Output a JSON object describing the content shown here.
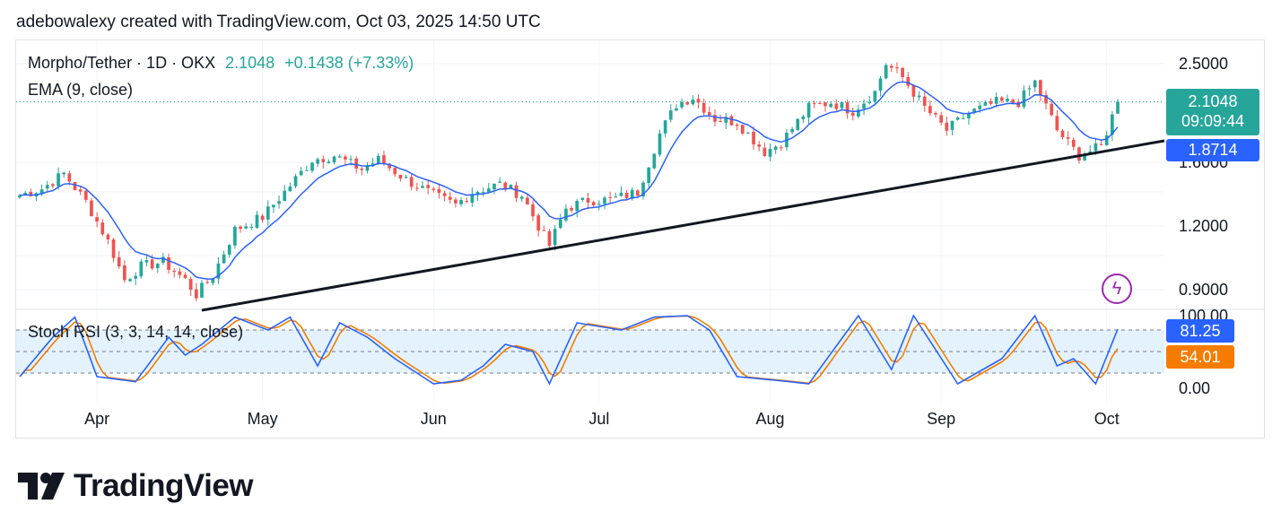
{
  "header": {
    "credit": "adebowalexy created with TradingView.com, Oct 03, 2025 14:50 UTC"
  },
  "legend": {
    "symbol": "Morpho/Tether · 1D · OKX",
    "price": "2.1048",
    "change": "+0.1438 (+7.33%)",
    "ema": "EMA (9, close)",
    "stoch": "Stoch RSI (3, 3, 14, 14, close)"
  },
  "tags": {
    "price": "2.1048",
    "countdown": "09:09:44",
    "ema": "1.8714",
    "stoch_k": "81.25",
    "stoch_d": "54.01"
  },
  "branding": {
    "logo_text": "TradingView",
    "logo_icon": "tradingview-logo-icon",
    "bolt_icon": "lightning-icon"
  },
  "colors": {
    "up": "#26a69a",
    "down": "#ef5350",
    "ema": "#2962ff",
    "trendline": "#131722",
    "stoch_k": "#2962ff",
    "stoch_d": "#f57c00",
    "band": "#e3f2fd"
  },
  "chart_data": {
    "type": "candlestick",
    "price_scale": "log",
    "y_ticks": [
      2.5,
      1.6,
      1.2,
      0.9
    ],
    "y_tick_labels": [
      "2.5000",
      "1.6000",
      "1.2000",
      "0.9000"
    ],
    "x_tick_labels": [
      "Apr",
      "May",
      "Jun",
      "Jul",
      "Aug",
      "Sep",
      "Oct"
    ],
    "close_anchors": [
      [
        "2025-03-18",
        1.38
      ],
      [
        "2025-03-22",
        1.42
      ],
      [
        "2025-03-26",
        1.52
      ],
      [
        "2025-03-30",
        1.34
      ],
      [
        "2025-04-03",
        1.12
      ],
      [
        "2025-04-06",
        0.94
      ],
      [
        "2025-04-09",
        1.0
      ],
      [
        "2025-04-13",
        1.02
      ],
      [
        "2025-04-17",
        0.94
      ],
      [
        "2025-04-19",
        0.88
      ],
      [
        "2025-04-22",
        0.96
      ],
      [
        "2025-04-26",
        1.18
      ],
      [
        "2025-05-01",
        1.25
      ],
      [
        "2025-05-05",
        1.4
      ],
      [
        "2025-05-10",
        1.62
      ],
      [
        "2025-05-14",
        1.65
      ],
      [
        "2025-05-19",
        1.55
      ],
      [
        "2025-05-22",
        1.62
      ],
      [
        "2025-05-27",
        1.48
      ],
      [
        "2025-06-01",
        1.38
      ],
      [
        "2025-06-05",
        1.32
      ],
      [
        "2025-06-08",
        1.4
      ],
      [
        "2025-06-13",
        1.45
      ],
      [
        "2025-06-17",
        1.38
      ],
      [
        "2025-06-20",
        1.2
      ],
      [
        "2025-06-22",
        1.1
      ],
      [
        "2025-06-25",
        1.3
      ],
      [
        "2025-06-29",
        1.35
      ],
      [
        "2025-07-03",
        1.35
      ],
      [
        "2025-07-08",
        1.4
      ],
      [
        "2025-07-12",
        1.82
      ],
      [
        "2025-07-15",
        2.08
      ],
      [
        "2025-07-18",
        2.15
      ],
      [
        "2025-07-22",
        1.95
      ],
      [
        "2025-07-26",
        1.92
      ],
      [
        "2025-07-31",
        1.68
      ],
      [
        "2025-08-03",
        1.75
      ],
      [
        "2025-08-08",
        2.05
      ],
      [
        "2025-08-12",
        2.1
      ],
      [
        "2025-08-16",
        2.02
      ],
      [
        "2025-08-20",
        2.2
      ],
      [
        "2025-08-22",
        2.5
      ],
      [
        "2025-08-25",
        2.35
      ],
      [
        "2025-08-29",
        2.05
      ],
      [
        "2025-09-02",
        1.85
      ],
      [
        "2025-09-06",
        2.0
      ],
      [
        "2025-09-11",
        2.1
      ],
      [
        "2025-09-15",
        2.1
      ],
      [
        "2025-09-18",
        2.3
      ],
      [
        "2025-09-22",
        1.85
      ],
      [
        "2025-09-26",
        1.65
      ],
      [
        "2025-09-30",
        1.72
      ],
      [
        "2025-10-02",
        1.97
      ],
      [
        "2025-10-03",
        2.1048
      ]
    ],
    "ema_period": 9,
    "trendline": [
      [
        "2025-04-20",
        0.82
      ],
      [
        "2025-10-03",
        1.7
      ]
    ],
    "stoch_rsi": {
      "levels": [
        100,
        80,
        20,
        0
      ],
      "tick_labels": [
        "100.00",
        "0.00"
      ],
      "k_anchors": [
        [
          "2025-03-18",
          15
        ],
        [
          "2025-03-24",
          70
        ],
        [
          "2025-03-28",
          98
        ],
        [
          "2025-04-01",
          15
        ],
        [
          "2025-04-08",
          8
        ],
        [
          "2025-04-14",
          70
        ],
        [
          "2025-04-17",
          45
        ],
        [
          "2025-04-20",
          60
        ],
        [
          "2025-04-26",
          98
        ],
        [
          "2025-05-02",
          80
        ],
        [
          "2025-05-06",
          98
        ],
        [
          "2025-05-11",
          30
        ],
        [
          "2025-05-15",
          90
        ],
        [
          "2025-05-20",
          70
        ],
        [
          "2025-05-25",
          40
        ],
        [
          "2025-06-01",
          5
        ],
        [
          "2025-06-06",
          10
        ],
        [
          "2025-06-10",
          30
        ],
        [
          "2025-06-14",
          60
        ],
        [
          "2025-06-19",
          50
        ],
        [
          "2025-06-22",
          5
        ],
        [
          "2025-06-27",
          90
        ],
        [
          "2025-07-05",
          80
        ],
        [
          "2025-07-11",
          98
        ],
        [
          "2025-07-17",
          100
        ],
        [
          "2025-07-21",
          80
        ],
        [
          "2025-07-26",
          15
        ],
        [
          "2025-08-02",
          10
        ],
        [
          "2025-08-08",
          5
        ],
        [
          "2025-08-17",
          100
        ],
        [
          "2025-08-23",
          25
        ],
        [
          "2025-08-27",
          100
        ],
        [
          "2025-09-04",
          5
        ],
        [
          "2025-09-12",
          40
        ],
        [
          "2025-09-18",
          100
        ],
        [
          "2025-09-22",
          30
        ],
        [
          "2025-09-25",
          40
        ],
        [
          "2025-09-29",
          5
        ],
        [
          "2025-10-03",
          81.25
        ]
      ],
      "d_final": 54.01
    }
  }
}
